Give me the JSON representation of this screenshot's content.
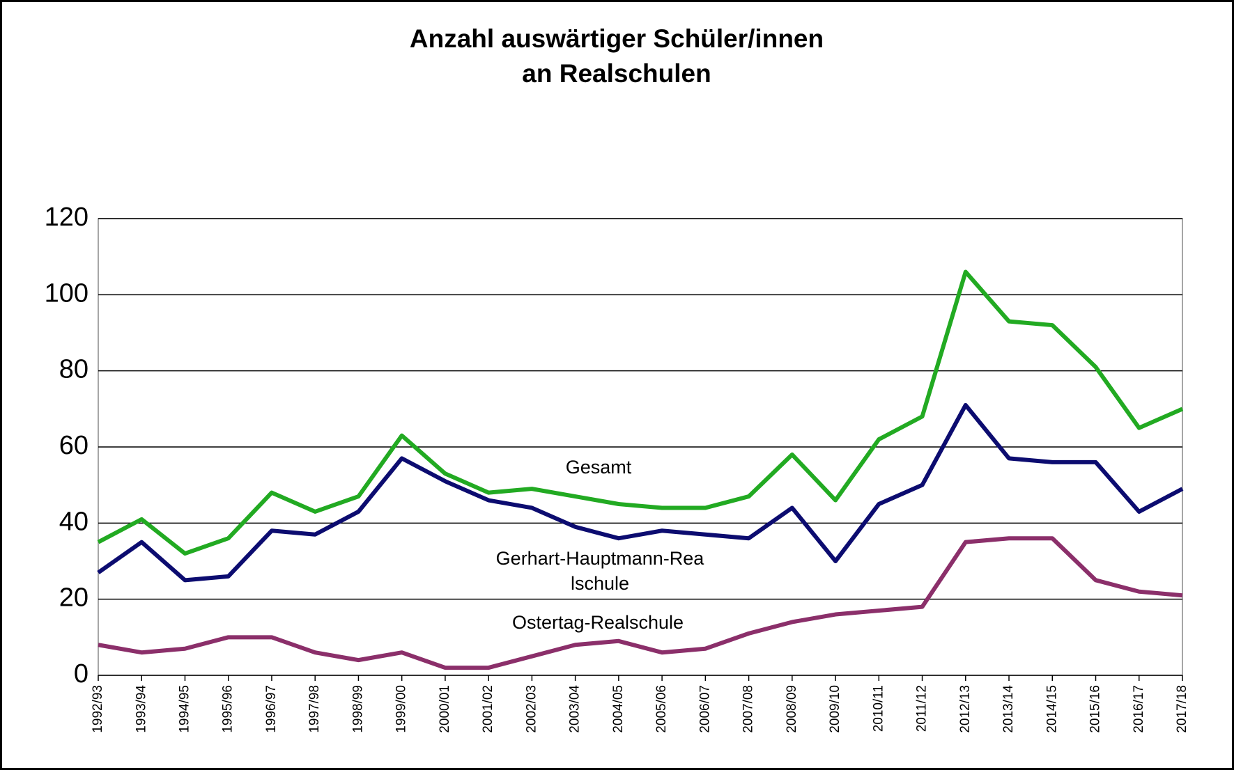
{
  "chart_data": {
    "type": "line",
    "title": [
      "Anzahl auswärtiger Schüler/innen",
      "an Realschulen"
    ],
    "categories": [
      "1992/93",
      "1993/94",
      "1994/95",
      "1995/96",
      "1996/97",
      "1997/98",
      "1998/99",
      "1999/00",
      "2000/01",
      "2001/02",
      "2002/03",
      "2003/04",
      "2004/05",
      "2005/06",
      "2006/07",
      "2007/08",
      "2008/09",
      "2009/10",
      "2010/11",
      "2011/12",
      "2012/13",
      "2013/14",
      "2014/15",
      "2015/16",
      "2016/17",
      "2017/18"
    ],
    "series": [
      {
        "name": "Gesamt",
        "color": "#22aa22",
        "values": [
          35,
          41,
          32,
          36,
          48,
          43,
          47,
          63,
          53,
          48,
          49,
          47,
          45,
          44,
          44,
          47,
          58,
          46,
          62,
          68,
          106,
          93,
          92,
          81,
          65,
          70
        ]
      },
      {
        "name": "Gerhart-Hauptmann-Realschule",
        "color": "#0c0c70",
        "values": [
          27,
          35,
          25,
          26,
          38,
          37,
          43,
          57,
          51,
          46,
          44,
          39,
          36,
          38,
          37,
          36,
          44,
          30,
          45,
          50,
          71,
          57,
          56,
          56,
          43,
          49
        ]
      },
      {
        "name": "Ostertag-Realschule",
        "color": "#8b2f6a",
        "values": [
          8,
          6,
          7,
          10,
          10,
          6,
          4,
          6,
          2,
          2,
          5,
          8,
          9,
          6,
          7,
          11,
          14,
          16,
          17,
          18,
          35,
          36,
          36,
          25,
          22,
          21
        ]
      }
    ],
    "ylim": [
      0,
      120
    ],
    "yticks": [
      0,
      20,
      40,
      60,
      80,
      100,
      120
    ],
    "grid": true
  }
}
